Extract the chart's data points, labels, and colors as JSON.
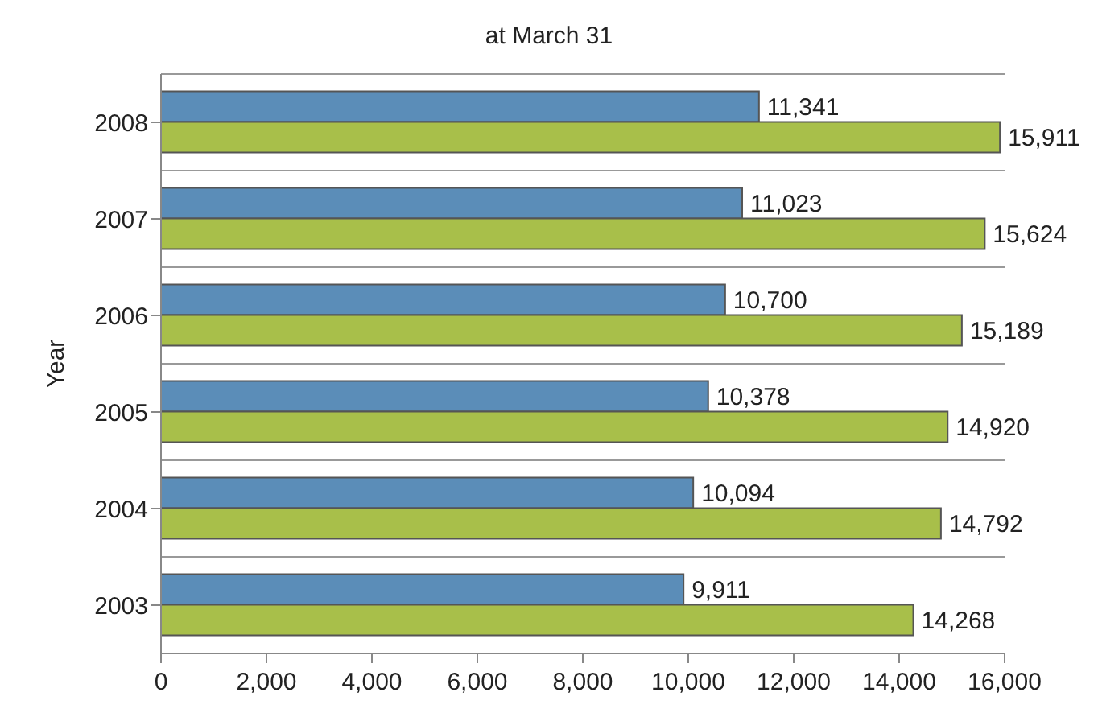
{
  "chart_data": {
    "type": "bar",
    "orientation": "horizontal",
    "title": "at March 31",
    "ylabel": "Year",
    "categories": [
      "2008",
      "2007",
      "2006",
      "2005",
      "2004",
      "2003"
    ],
    "series": [
      {
        "color": "#5b8db8",
        "values": [
          11341,
          11023,
          10700,
          10378,
          10094,
          9911
        ],
        "value_labels": [
          "11,341",
          "11,023",
          "10,700",
          "10,378",
          "10,094",
          "9,911"
        ]
      },
      {
        "color": "#a8bf4a",
        "values": [
          15911,
          15624,
          15189,
          14920,
          14792,
          14268
        ],
        "value_labels": [
          "15,911",
          "15,624",
          "15,189",
          "14,920",
          "14,792",
          "14,268"
        ]
      }
    ],
    "xlim": [
      0,
      16000
    ],
    "xticks": [
      0,
      {
        "value": 2000,
        "label": "2,000"
      },
      {
        "value": 4000,
        "label": "4,000"
      },
      {
        "value": 6000,
        "label": "6,000"
      },
      {
        "value": 8000,
        "label": "8,000"
      },
      {
        "value": 10000,
        "label": "10,000"
      },
      {
        "value": 12000,
        "label": "12,000"
      },
      {
        "value": 14000,
        "label": "14,000"
      },
      {
        "value": 16000,
        "label": "16,000"
      }
    ],
    "grid": "y",
    "legend": false
  }
}
